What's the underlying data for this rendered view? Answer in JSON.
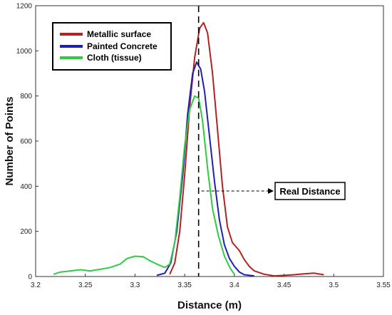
{
  "chart_data": {
    "type": "line",
    "xlabel": "Distance (m)",
    "ylabel": "Number of Points",
    "xlim": [
      3.2,
      3.55
    ],
    "ylim": [
      0,
      1200
    ],
    "xticks": [
      "3.2",
      "3.25",
      "3.3",
      "3.35",
      "3.4",
      "3.45",
      "3.5",
      "3.55"
    ],
    "yticks": [
      "0",
      "200",
      "400",
      "600",
      "800",
      "1000",
      "1200"
    ],
    "grid": false,
    "legend_position": "top-left",
    "reference_line": {
      "x": 3.364,
      "style": "dashed",
      "label": "Real Distance"
    },
    "series": [
      {
        "name": "Metallic surface",
        "color": "#b22222",
        "points": [
          [
            3.335,
            10
          ],
          [
            3.34,
            60
          ],
          [
            3.345,
            200
          ],
          [
            3.35,
            450
          ],
          [
            3.355,
            750
          ],
          [
            3.36,
            970
          ],
          [
            3.365,
            1100
          ],
          [
            3.369,
            1125
          ],
          [
            3.373,
            1080
          ],
          [
            3.378,
            900
          ],
          [
            3.383,
            650
          ],
          [
            3.388,
            400
          ],
          [
            3.393,
            220
          ],
          [
            3.398,
            150
          ],
          [
            3.405,
            115
          ],
          [
            3.41,
            75
          ],
          [
            3.415,
            45
          ],
          [
            3.42,
            25
          ],
          [
            3.43,
            10
          ],
          [
            3.44,
            3
          ],
          [
            3.45,
            5
          ],
          [
            3.46,
            8
          ],
          [
            3.47,
            12
          ],
          [
            3.48,
            15
          ],
          [
            3.49,
            8
          ]
        ]
      },
      {
        "name": "Painted Concrete",
        "color": "#1f1fb4",
        "points": [
          [
            3.322,
            5
          ],
          [
            3.33,
            15
          ],
          [
            3.336,
            60
          ],
          [
            3.342,
            200
          ],
          [
            3.348,
            450
          ],
          [
            3.353,
            720
          ],
          [
            3.358,
            900
          ],
          [
            3.362,
            950
          ],
          [
            3.366,
            920
          ],
          [
            3.37,
            820
          ],
          [
            3.375,
            620
          ],
          [
            3.38,
            420
          ],
          [
            3.385,
            250
          ],
          [
            3.39,
            140
          ],
          [
            3.395,
            80
          ],
          [
            3.4,
            45
          ],
          [
            3.405,
            20
          ],
          [
            3.41,
            8
          ],
          [
            3.42,
            3
          ]
        ]
      },
      {
        "name": "Cloth (tissue)",
        "color": "#2ecc40",
        "points": [
          [
            3.218,
            10
          ],
          [
            3.225,
            20
          ],
          [
            3.235,
            25
          ],
          [
            3.245,
            30
          ],
          [
            3.255,
            25
          ],
          [
            3.265,
            32
          ],
          [
            3.275,
            40
          ],
          [
            3.285,
            55
          ],
          [
            3.292,
            80
          ],
          [
            3.3,
            90
          ],
          [
            3.308,
            88
          ],
          [
            3.315,
            70
          ],
          [
            3.322,
            55
          ],
          [
            3.33,
            40
          ],
          [
            3.335,
            55
          ],
          [
            3.34,
            150
          ],
          [
            3.345,
            350
          ],
          [
            3.35,
            580
          ],
          [
            3.355,
            740
          ],
          [
            3.36,
            800
          ],
          [
            3.364,
            790
          ],
          [
            3.368,
            690
          ],
          [
            3.373,
            480
          ],
          [
            3.378,
            300
          ],
          [
            3.384,
            180
          ],
          [
            3.39,
            90
          ],
          [
            3.396,
            35
          ],
          [
            3.4,
            10
          ]
        ]
      }
    ]
  }
}
